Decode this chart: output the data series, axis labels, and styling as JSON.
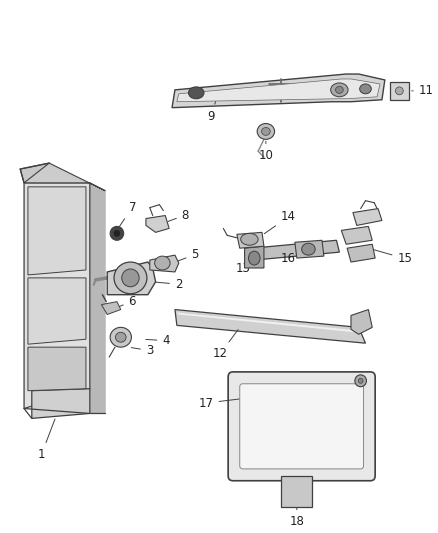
{
  "bg_color": "#ffffff",
  "fig_width": 4.38,
  "fig_height": 5.33,
  "dpi": 100,
  "line_color": "#404040",
  "label_color": "#222222",
  "label_fontsize": 8.5
}
